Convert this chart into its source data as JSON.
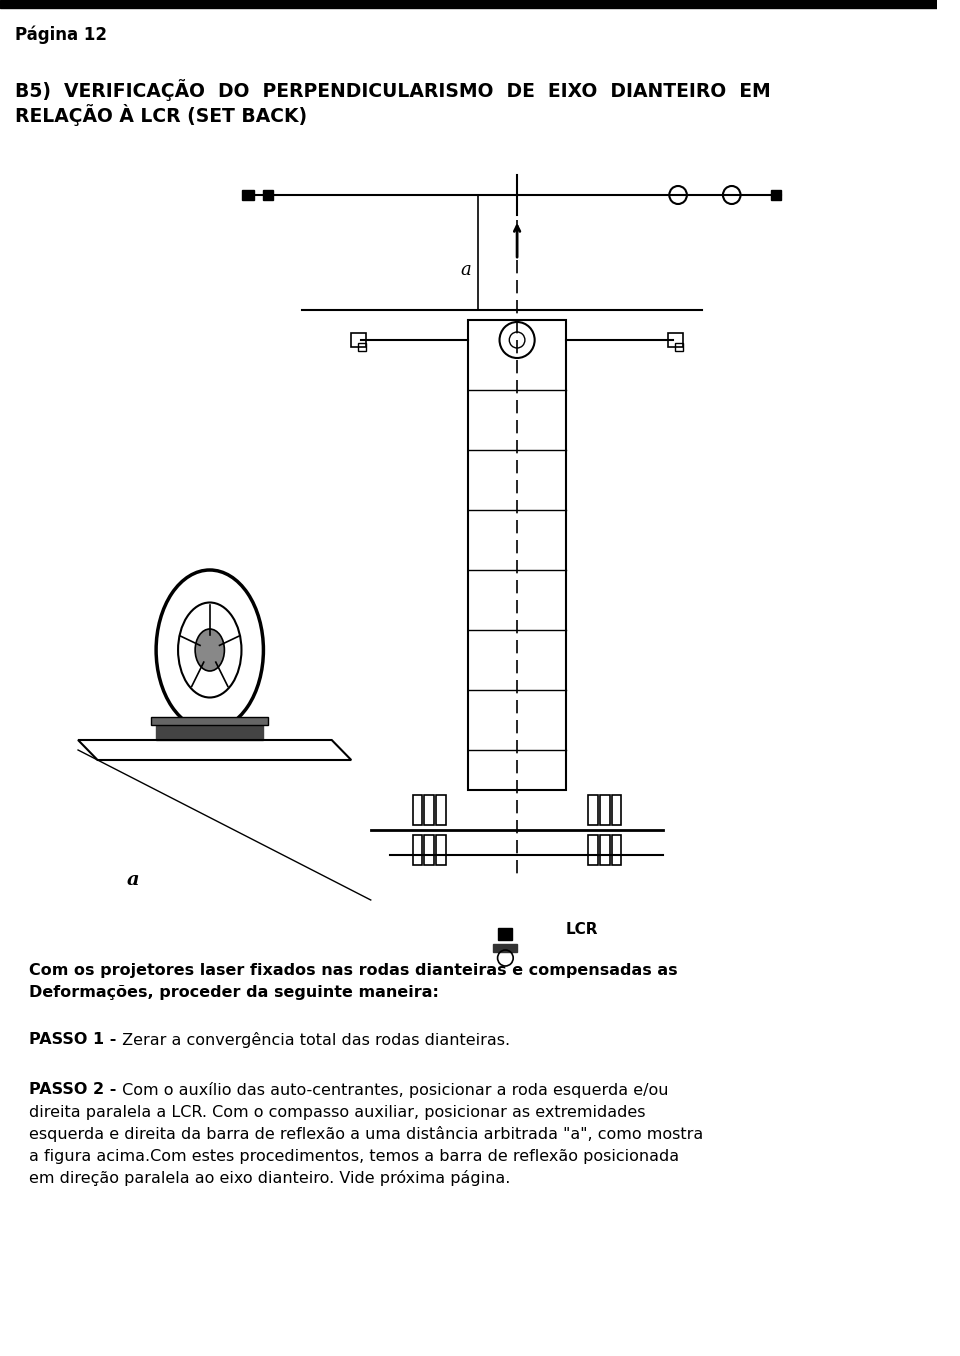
{
  "page_label": "Página 12",
  "title_line1": "B5)  VERIFICAÇÃO  DO  PERPENDICULARISMO  DE  EIXO  DIANTEIRO  EM",
  "title_line2": "RELAÇÃO À LCR (SET BACK)",
  "intro_bold": "Com os projetores laser fixados nas rodas dianteiras e compensadas as\nDeformações, proceder da seguinte maneira:",
  "passo1_bold": "PASSO 1 -",
  "passo1_normal": " Zerar a convergência total das rodas dianteiras.",
  "passo2_bold": "PASSO 2 -",
  "passo2_normal": " Com o auxílio das auto-centrantes, posicionar a roda esquerda e/ou\ndireita paralela a LCR. Com o compasso auxiliar, posicionar as extremidades\nesquerda e direita da barra de reflexão a uma distância arbitrada \"a\", como mostra\na figura acima.Com estes procedimentos, temos a barra de reflexão posicionada\nem direção paralela ao eixo dianteiro. Vide próxima página.",
  "bg_color": "#ffffff",
  "text_color": "#000000",
  "top_bar_color": "#000000",
  "title_fontsize": 13.5,
  "body_fontsize": 11.5,
  "label_fontsize": 11.0
}
